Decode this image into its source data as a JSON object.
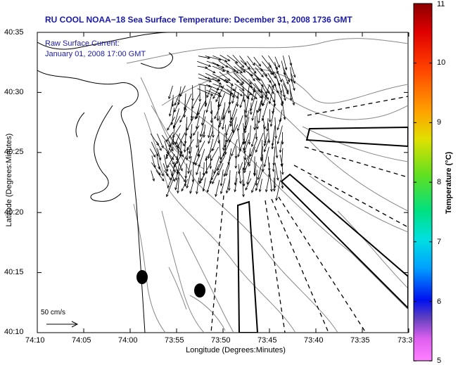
{
  "title": "RU COOL  NOAA−18  Sea Surface Temperature:  December 31, 2008 1736 GMT",
  "current_label": [
    "Raw Surface Current:",
    "January 01, 2008 17:00 GMT"
  ],
  "axes": {
    "xlabel": "Longitude (Degrees:Minutes)",
    "ylabel": "Latitude (Degrees:Minutes)",
    "xticks": [
      "74:10",
      "74:05",
      "74:00",
      "73:55",
      "73:50",
      "73:45",
      "73:40",
      "73:35",
      "73:3"
    ],
    "yticks": [
      "40:35",
      "40:30",
      "40:25",
      "40:20",
      "40:15",
      "40:10"
    ]
  },
  "scale_label": "50 cm/s",
  "colorbar": {
    "label": "Temperature (°C)",
    "ticks": [
      "11",
      "10",
      "9",
      "8",
      "7",
      "6",
      "5"
    ],
    "min": 5,
    "max": 11
  },
  "colors": {
    "title": "#1a1aa8",
    "frame": "#000000",
    "coast": "#000000",
    "contour": "#888888"
  }
}
